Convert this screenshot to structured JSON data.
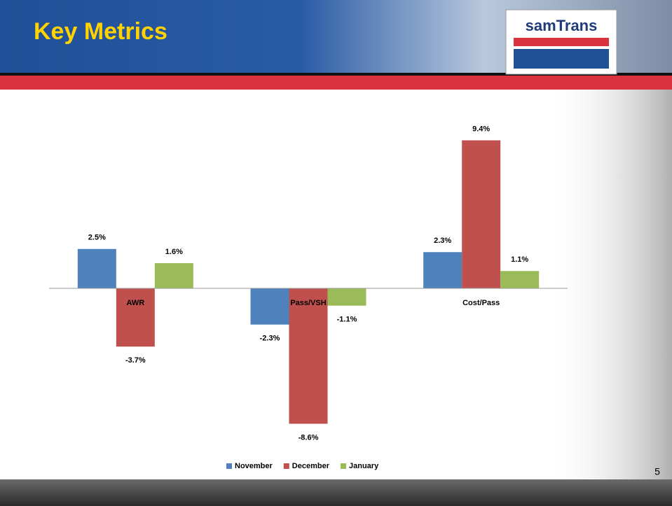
{
  "header": {
    "title": "Key Metrics",
    "logo": "samTrans"
  },
  "page_number": "5",
  "chart_data": {
    "type": "bar",
    "categories": [
      "AWR",
      "Pass/VSH",
      "Cost/Pass"
    ],
    "series": [
      {
        "name": "November",
        "color": "#4f81bd",
        "values": [
          2.5,
          -2.3,
          2.3
        ],
        "value_labels": [
          "2.5%",
          "-2.3%",
          "2.3%"
        ]
      },
      {
        "name": "December",
        "color": "#c0504d",
        "values": [
          -3.7,
          -8.6,
          9.4
        ],
        "value_labels": [
          "-3.7%",
          "-8.6%",
          "9.4%"
        ]
      },
      {
        "name": "January",
        "color": "#9bbb59",
        "values": [
          1.6,
          -1.1,
          1.1
        ],
        "value_labels": [
          "1.6%",
          "-1.1%",
          "1.1%"
        ]
      }
    ],
    "ylim": [
      -10,
      10
    ],
    "legend": "bottom"
  }
}
